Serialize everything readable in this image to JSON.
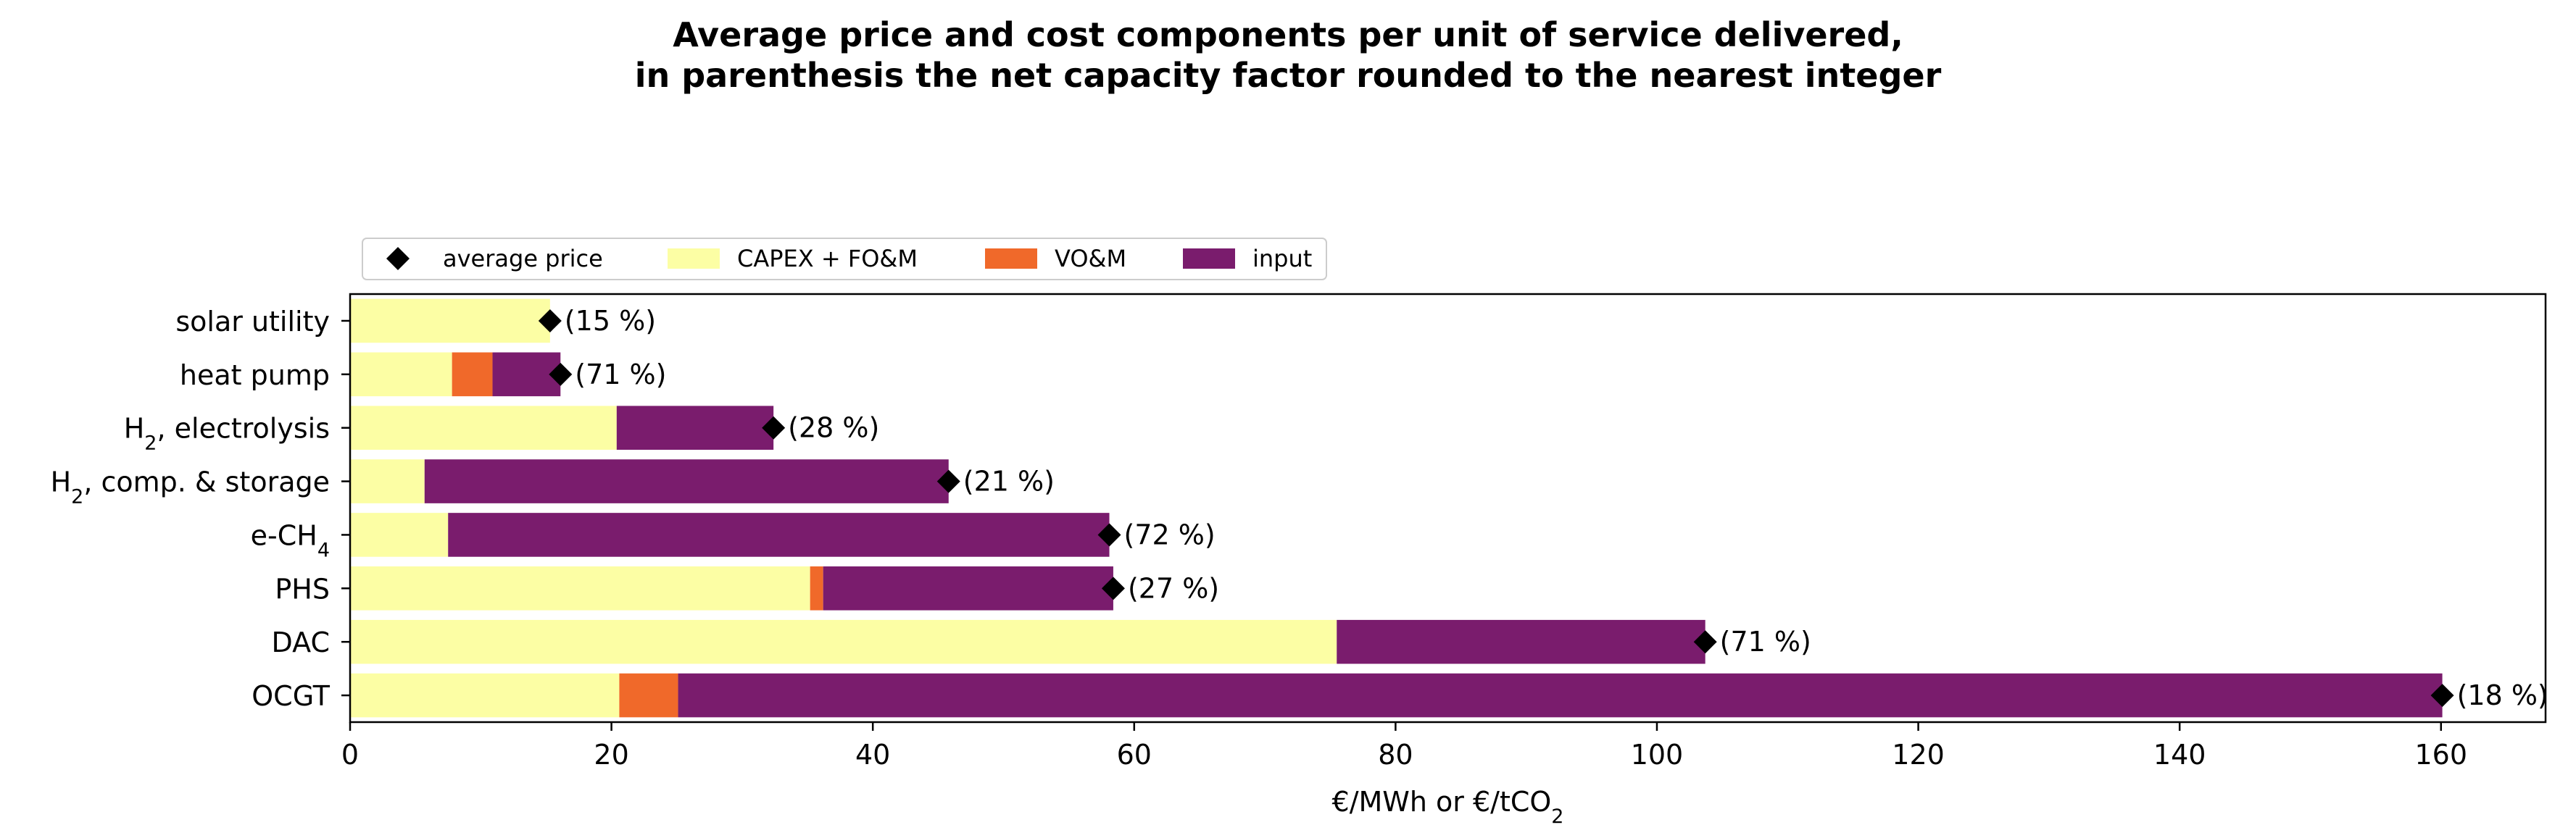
{
  "chart_data": {
    "type": "bar",
    "orientation": "horizontal",
    "stacked": true,
    "title": "Average price and cost components per unit of service delivered,",
    "subtitle": "in parenthesis the net capacity factor rounded to the nearest integer",
    "xlabel": "€/MWh or €/tCO",
    "xlabel_sub": "2",
    "xlim": [
      0,
      168
    ],
    "xticks": [
      0,
      20,
      40,
      60,
      80,
      100,
      120,
      140,
      160
    ],
    "grid": false,
    "legend_position": "top-left",
    "categories": [
      {
        "label": "solar utility",
        "sub": "",
        "tail": ""
      },
      {
        "label": "heat pump",
        "sub": "",
        "tail": ""
      },
      {
        "label": "H",
        "sub": "2",
        "tail": ", electrolysis"
      },
      {
        "label": "H",
        "sub": "2",
        "tail": ", comp. & storage"
      },
      {
        "label": "e-CH",
        "sub": "4",
        "tail": ""
      },
      {
        "label": "PHS",
        "sub": "",
        "tail": ""
      },
      {
        "label": "DAC",
        "sub": "",
        "tail": ""
      },
      {
        "label": "OCGT",
        "sub": "",
        "tail": ""
      }
    ],
    "series": [
      {
        "name": "CAPEX + FO&M",
        "color": "#fcfea4",
        "values": [
          15.3,
          7.8,
          20.4,
          5.7,
          7.5,
          35.2,
          75.5,
          20.6
        ]
      },
      {
        "name": "VO&M",
        "color": "#f0692a",
        "values": [
          0.0,
          3.1,
          0.0,
          0.0,
          0.0,
          1.0,
          0.0,
          4.5
        ]
      },
      {
        "name": "input",
        "color": "#7a1c6d",
        "values": [
          0.0,
          5.2,
          12.0,
          40.1,
          50.6,
          22.2,
          28.2,
          135.0
        ]
      }
    ],
    "average_price": {
      "name": "average price",
      "color": "#000000",
      "values": [
        15.3,
        16.1,
        32.4,
        45.8,
        58.1,
        58.4,
        103.7,
        160.1
      ]
    },
    "capacity_factor_labels": [
      "(15 %)",
      "(71 %)",
      "(28 %)",
      "(21 %)",
      "(72 %)",
      "(27 %)",
      "(71 %)",
      "(18 %)"
    ]
  }
}
